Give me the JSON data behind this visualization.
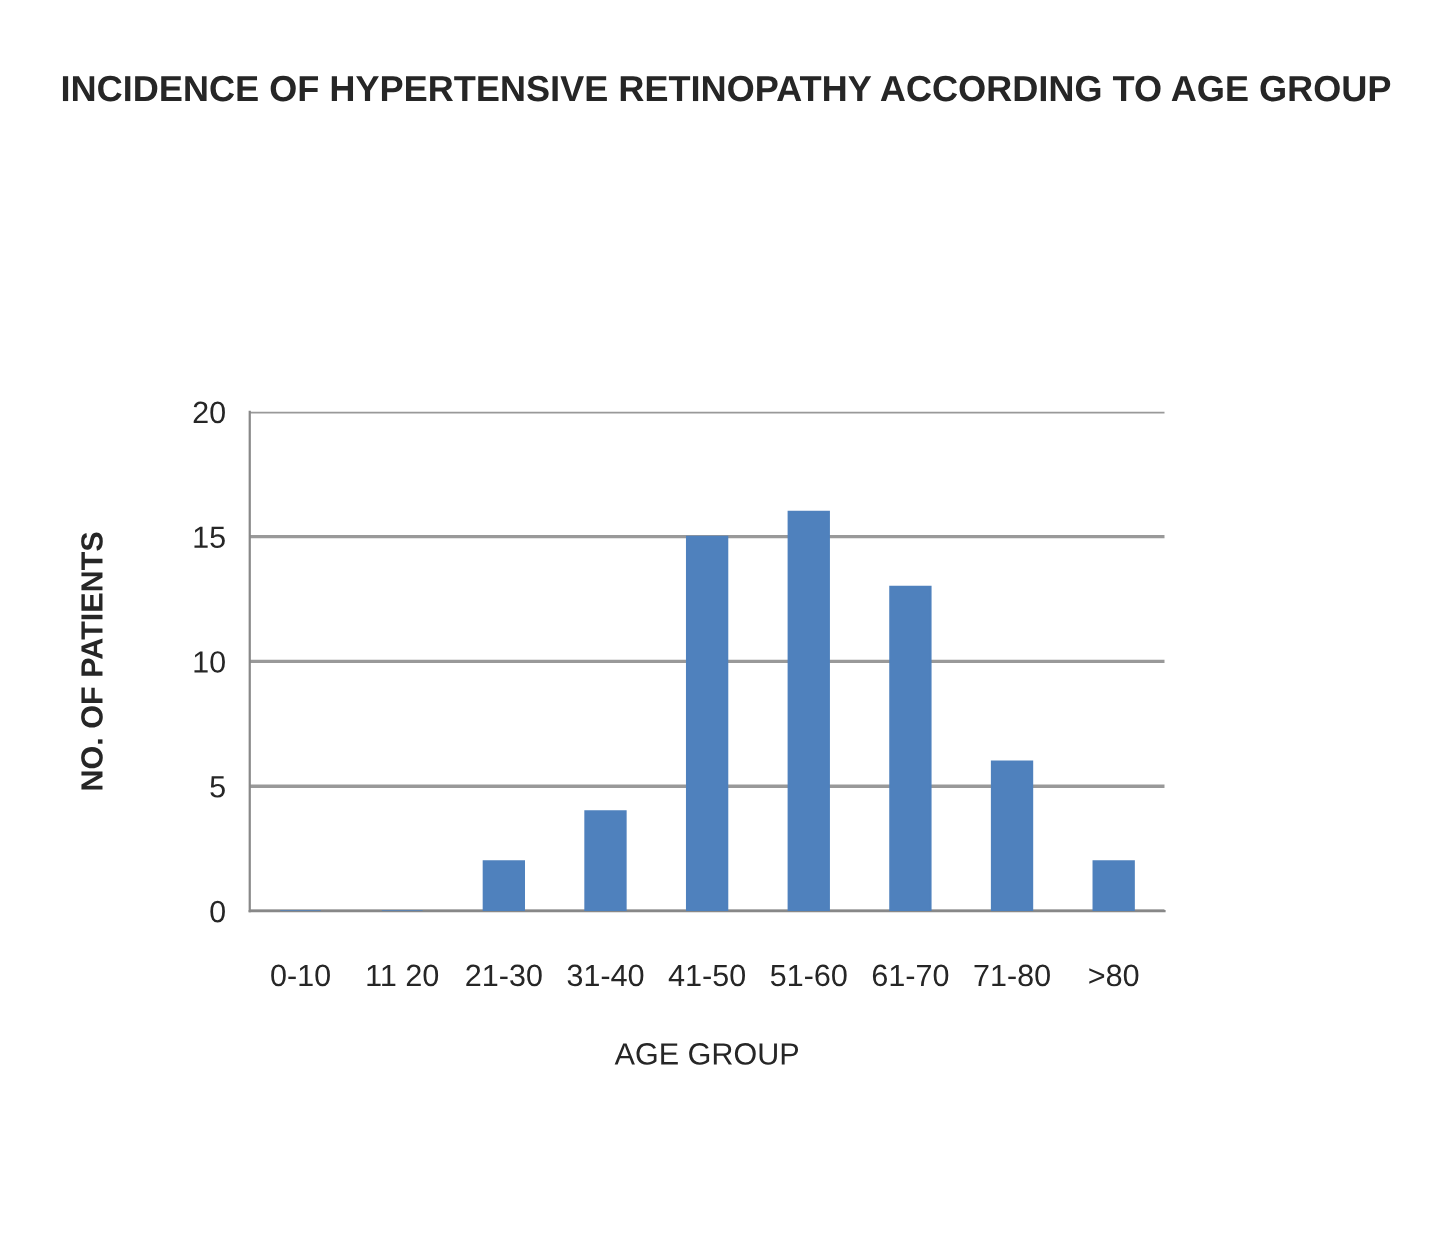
{
  "chart_data": {
    "type": "bar",
    "title": "INCIDENCE OF HYPERTENSIVE RETINOPATHY ACCORDING TO AGE GROUP",
    "xlabel": "AGE GROUP",
    "ylabel": "NO. OF PATIENTS",
    "categories": [
      "0-10",
      "11 20",
      "21-30",
      "31-40",
      "41-50",
      "51-60",
      "61-70",
      "71-80",
      ">80"
    ],
    "values": [
      0,
      0,
      2,
      4,
      15,
      16,
      13,
      6,
      2
    ],
    "color": "#4f81bd",
    "ylim": [
      0,
      20
    ],
    "yticks": [
      0,
      5,
      10,
      15,
      20
    ],
    "grid": "y",
    "legend": false
  }
}
